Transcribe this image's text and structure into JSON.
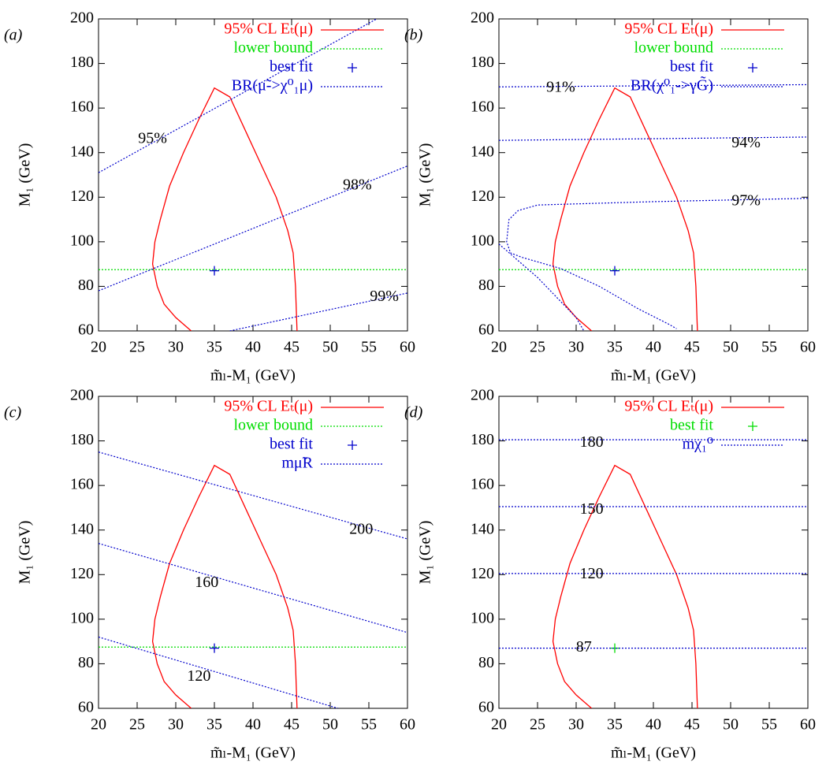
{
  "chart_data": [
    {
      "type": "line",
      "panel": "(a)",
      "x_label": "m̃ₗ-M₁ (GeV)",
      "y_label": "M₁ (GeV)",
      "xlim": [
        20,
        60
      ],
      "ylim": [
        60,
        200
      ],
      "xticks": [
        20,
        25,
        30,
        35,
        40,
        45,
        50,
        55,
        60
      ],
      "yticks": [
        60,
        80,
        100,
        120,
        140,
        160,
        180,
        200
      ],
      "grid": false,
      "legend": "upper right",
      "series": [
        {
          "name": "95% CL  Eₜ(μ)",
          "color": "#ff0000",
          "style": "solid",
          "x": [
            32,
            30,
            28.5,
            27.6,
            27,
            27.3,
            28,
            29.2,
            31,
            33,
            35,
            37,
            39,
            41,
            43,
            44.5,
            45.2,
            45.5,
            45.7
          ],
          "values": [
            60,
            66,
            72,
            80,
            90,
            100,
            110,
            125,
            140,
            155,
            169,
            165,
            150,
            135,
            120,
            105,
            95,
            80,
            60
          ]
        },
        {
          "name": "lower bound",
          "color": "#00dd00",
          "style": "dotted",
          "x": [
            20,
            60
          ],
          "values": [
            87.5,
            87.5
          ]
        },
        {
          "name": "best fit",
          "color": "#0000cc",
          "style": "point",
          "x": [
            35
          ],
          "values": [
            87
          ]
        },
        {
          "name": "BR(μ̃->χ⁰₁μ)",
          "color": "#0000cc",
          "style": "dotted",
          "x": [
            20,
            56
          ],
          "values": [
            131,
            200
          ]
        },
        {
          "color": "#0000cc",
          "style": "dotted",
          "x": [
            20,
            60
          ],
          "values": [
            78,
            134
          ]
        },
        {
          "color": "#0000cc",
          "style": "dotted",
          "x": [
            37,
            60
          ],
          "values": [
            60,
            77
          ]
        }
      ],
      "annotations": [
        {
          "text": "95%",
          "x": 27,
          "y": 146
        },
        {
          "text": "98%",
          "x": 53.5,
          "y": 125
        },
        {
          "text": "99%",
          "x": 57,
          "y": 75
        }
      ]
    },
    {
      "type": "line",
      "panel": "(b)",
      "x_label": "m̃ₗ-M₁ (GeV)",
      "y_label": "M₁ (GeV)",
      "xlim": [
        20,
        60
      ],
      "ylim": [
        60,
        200
      ],
      "xticks": [
        20,
        25,
        30,
        35,
        40,
        45,
        50,
        55,
        60
      ],
      "yticks": [
        60,
        80,
        100,
        120,
        140,
        160,
        180,
        200
      ],
      "grid": false,
      "legend": "upper right",
      "series": [
        {
          "name": "95% CL  Eₜ(μ)",
          "color": "#ff0000",
          "style": "solid",
          "x": [
            32,
            30,
            28.5,
            27.6,
            27,
            27.3,
            28,
            29.2,
            31,
            33,
            35,
            37,
            39,
            41,
            43,
            44.5,
            45.2,
            45.5,
            45.7
          ],
          "values": [
            60,
            66,
            72,
            80,
            90,
            100,
            110,
            125,
            140,
            155,
            169,
            165,
            150,
            135,
            120,
            105,
            95,
            80,
            60
          ]
        },
        {
          "name": "lower bound",
          "color": "#00dd00",
          "style": "dotted",
          "x": [
            20,
            60
          ],
          "values": [
            87.5,
            87.5
          ]
        },
        {
          "name": "best fit",
          "color": "#0000cc",
          "style": "point",
          "x": [
            35
          ],
          "values": [
            87
          ]
        },
        {
          "name": "BR(χ⁰₁->γG̃)",
          "color": "#0000cc",
          "style": "dotted",
          "x": [
            20,
            60
          ],
          "values": [
            169.5,
            170.5
          ]
        },
        {
          "color": "#0000cc",
          "style": "dotted",
          "x": [
            20,
            60
          ],
          "values": [
            145.5,
            147
          ]
        },
        {
          "color": "#0000cc",
          "style": "dotted",
          "x": [
            60,
            40,
            25,
            22.5,
            21.3,
            21,
            21.5,
            23,
            28,
            33,
            36,
            38,
            42,
            43
          ],
          "values": [
            119.5,
            118,
            116.5,
            114,
            110,
            100,
            95,
            93,
            88,
            80,
            74,
            70,
            63,
            61
          ]
        },
        {
          "color": "#0000cc",
          "style": "dotted",
          "x": [
            20,
            25,
            30,
            31
          ],
          "values": [
            99,
            84,
            66,
            60
          ]
        }
      ],
      "annotations": [
        {
          "text": "91%",
          "x": 28,
          "y": 169
        },
        {
          "text": "94%",
          "x": 52,
          "y": 144
        },
        {
          "text": "97%",
          "x": 52,
          "y": 118
        }
      ]
    },
    {
      "type": "line",
      "panel": "(c)",
      "x_label": "m̃ₗ-M₁ (GeV)",
      "y_label": "M₁ (GeV)",
      "xlim": [
        20,
        60
      ],
      "ylim": [
        60,
        200
      ],
      "xticks": [
        20,
        25,
        30,
        35,
        40,
        45,
        50,
        55,
        60
      ],
      "yticks": [
        60,
        80,
        100,
        120,
        140,
        160,
        180,
        200
      ],
      "grid": false,
      "legend": "upper right",
      "series": [
        {
          "name": "95% CL  Eₜ(μ)",
          "color": "#ff0000",
          "style": "solid",
          "x": [
            32,
            30,
            28.5,
            27.6,
            27,
            27.3,
            28,
            29.2,
            31,
            33,
            35,
            37,
            39,
            41,
            43,
            44.5,
            45.2,
            45.5,
            45.7
          ],
          "values": [
            60,
            66,
            72,
            80,
            90,
            100,
            110,
            125,
            140,
            155,
            169,
            165,
            150,
            135,
            120,
            105,
            95,
            80,
            60
          ]
        },
        {
          "name": "lower bound",
          "color": "#00dd00",
          "style": "dotted",
          "x": [
            20,
            60
          ],
          "values": [
            87.5,
            87.5
          ]
        },
        {
          "name": "best fit",
          "color": "#0000cc",
          "style": "point",
          "x": [
            35
          ],
          "values": [
            87
          ]
        },
        {
          "name": "mμ̃R",
          "color": "#0000cc",
          "style": "dotted",
          "x": [
            20,
            60
          ],
          "values": [
            175,
            136
          ]
        },
        {
          "color": "#0000cc",
          "style": "dotted",
          "x": [
            20,
            60
          ],
          "values": [
            134,
            94
          ]
        },
        {
          "color": "#0000cc",
          "style": "dotted",
          "x": [
            20,
            51
          ],
          "values": [
            92,
            60
          ]
        }
      ],
      "annotations": [
        {
          "text": "200",
          "x": 54,
          "y": 140
        },
        {
          "text": "160",
          "x": 34,
          "y": 116
        },
        {
          "text": "120",
          "x": 33,
          "y": 74
        }
      ]
    },
    {
      "type": "line",
      "panel": "(d)",
      "x_label": "m̃ₗ-M₁ (GeV)",
      "y_label": "M₁ (GeV)",
      "xlim": [
        20,
        60
      ],
      "ylim": [
        60,
        200
      ],
      "xticks": [
        20,
        25,
        30,
        35,
        40,
        45,
        50,
        55,
        60
      ],
      "yticks": [
        60,
        80,
        100,
        120,
        140,
        160,
        180,
        200
      ],
      "grid": false,
      "legend": "upper right",
      "series": [
        {
          "name": "95% CL  Eₜ(μ)",
          "color": "#ff0000",
          "style": "solid",
          "x": [
            32,
            30,
            28.5,
            27.6,
            27,
            27.3,
            28,
            29.2,
            31,
            33,
            35,
            37,
            39,
            41,
            43,
            44.5,
            45.2,
            45.5,
            45.7
          ],
          "values": [
            60,
            66,
            72,
            80,
            90,
            100,
            110,
            125,
            140,
            155,
            169,
            165,
            150,
            135,
            120,
            105,
            95,
            80,
            60
          ]
        },
        {
          "name": "best fit",
          "color": "#00dd00",
          "style": "point",
          "x": [
            35
          ],
          "values": [
            87
          ]
        },
        {
          "name": "mχ₁⁰",
          "color": "#0000cc",
          "style": "dotted",
          "x": [
            20,
            60
          ],
          "values": [
            180.5,
            180.5
          ]
        },
        {
          "color": "#0000cc",
          "style": "dotted",
          "x": [
            20,
            60
          ],
          "values": [
            150.5,
            150.5
          ]
        },
        {
          "color": "#0000cc",
          "style": "dotted",
          "x": [
            20,
            60
          ],
          "values": [
            120.5,
            120.5
          ]
        },
        {
          "color": "#0000cc",
          "style": "dotted",
          "x": [
            20,
            60
          ],
          "values": [
            87,
            87
          ]
        }
      ],
      "annotations": [
        {
          "text": "180",
          "x": 32,
          "y": 179
        },
        {
          "text": "150",
          "x": 32,
          "y": 149
        },
        {
          "text": "120",
          "x": 32,
          "y": 120
        },
        {
          "text": "87",
          "x": 31,
          "y": 87
        }
      ]
    }
  ]
}
